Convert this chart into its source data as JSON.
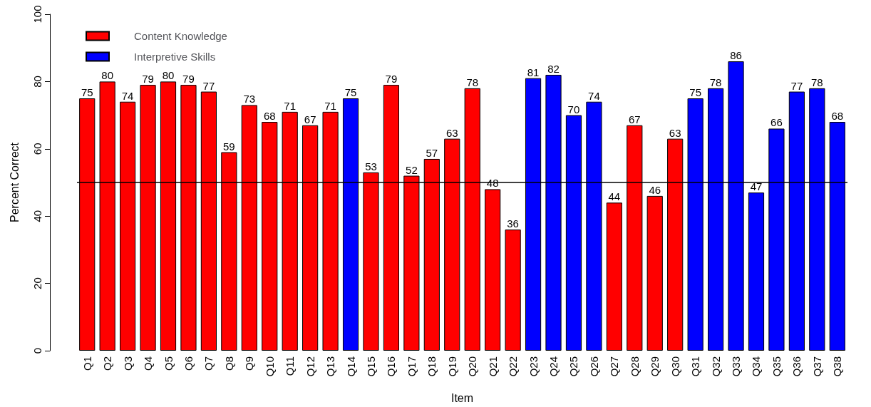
{
  "chart_data": {
    "type": "bar",
    "xlabel": "Item",
    "ylabel": "Percent Correct",
    "categories": [
      "Q1",
      "Q2",
      "Q3",
      "Q4",
      "Q5",
      "Q6",
      "Q7",
      "Q8",
      "Q9",
      "Q10",
      "Q11",
      "Q12",
      "Q13",
      "Q14",
      "Q15",
      "Q16",
      "Q17",
      "Q18",
      "Q19",
      "Q20",
      "Q21",
      "Q22",
      "Q23",
      "Q24",
      "Q25",
      "Q26",
      "Q27",
      "Q28",
      "Q29",
      "Q30",
      "Q31",
      "Q32",
      "Q33",
      "Q34",
      "Q35",
      "Q36",
      "Q37",
      "Q38"
    ],
    "series": [
      {
        "name": "Content Knowledge",
        "color": "#ff0000",
        "values": [
          75,
          80,
          74,
          79,
          80,
          79,
          77,
          59,
          73,
          68,
          71,
          67,
          71,
          null,
          53,
          79,
          52,
          57,
          63,
          78,
          48,
          36,
          null,
          null,
          null,
          null,
          44,
          67,
          46,
          63,
          null,
          null,
          null,
          null,
          null,
          null,
          null,
          null
        ]
      },
      {
        "name": "Interpretive Skills",
        "color": "#0000ff",
        "values": [
          null,
          null,
          null,
          null,
          null,
          null,
          null,
          null,
          null,
          null,
          null,
          null,
          null,
          75,
          null,
          null,
          null,
          null,
          null,
          null,
          null,
          null,
          81,
          82,
          70,
          74,
          null,
          null,
          null,
          null,
          75,
          78,
          86,
          47,
          66,
          77,
          78,
          68
        ]
      }
    ],
    "ylim": [
      0,
      100
    ],
    "yticks": [
      0,
      20,
      40,
      60,
      80,
      100
    ],
    "ref_lines": [
      {
        "axis": "y",
        "value": 50,
        "color": "#000000",
        "line_style": "solid"
      }
    ],
    "data_labels": true,
    "legend": "top left"
  }
}
